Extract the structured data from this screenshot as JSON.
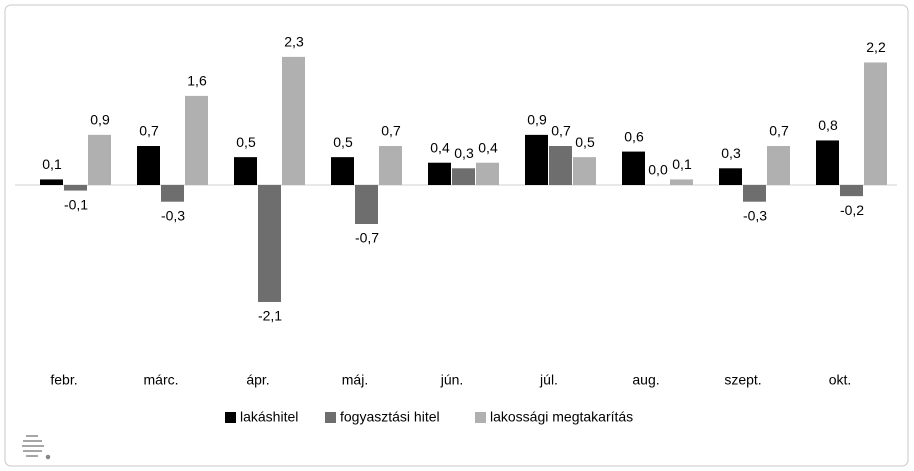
{
  "chart_data": {
    "type": "bar",
    "categories": [
      "febr.",
      "márc.",
      "ápr.",
      "máj.",
      "jún.",
      "júl.",
      "aug.",
      "szept.",
      "okt."
    ],
    "series": [
      {
        "name": "lakáshitel",
        "color": "#000000",
        "values": [
          0.1,
          0.7,
          0.5,
          0.5,
          0.4,
          0.9,
          0.6,
          0.3,
          0.8
        ],
        "value_labels": [
          "0,1",
          "0,7",
          "0,5",
          "0,5",
          "0,4",
          "0,9",
          "0,6",
          "0,3",
          "0,8"
        ]
      },
      {
        "name": "fogyasztási hitel",
        "color": "#6e6e6e",
        "values": [
          -0.1,
          -0.3,
          -2.1,
          -0.7,
          0.3,
          0.7,
          0.0,
          -0.3,
          -0.2
        ],
        "value_labels": [
          "-0,1",
          "-0,3",
          "-2,1",
          "-0,7",
          "0,3",
          "0,7",
          "0,0",
          "-0,3",
          "-0,2"
        ]
      },
      {
        "name": "lakossági megtakarítás",
        "color": "#b0b0b0",
        "values": [
          0.9,
          1.6,
          2.3,
          0.7,
          0.4,
          0.5,
          0.1,
          0.7,
          2.2
        ],
        "value_labels": [
          "0,9",
          "1,6",
          "2,3",
          "0,7",
          "0,4",
          "0,5",
          "0,1",
          "0,7",
          "2,2"
        ]
      }
    ]
  }
}
